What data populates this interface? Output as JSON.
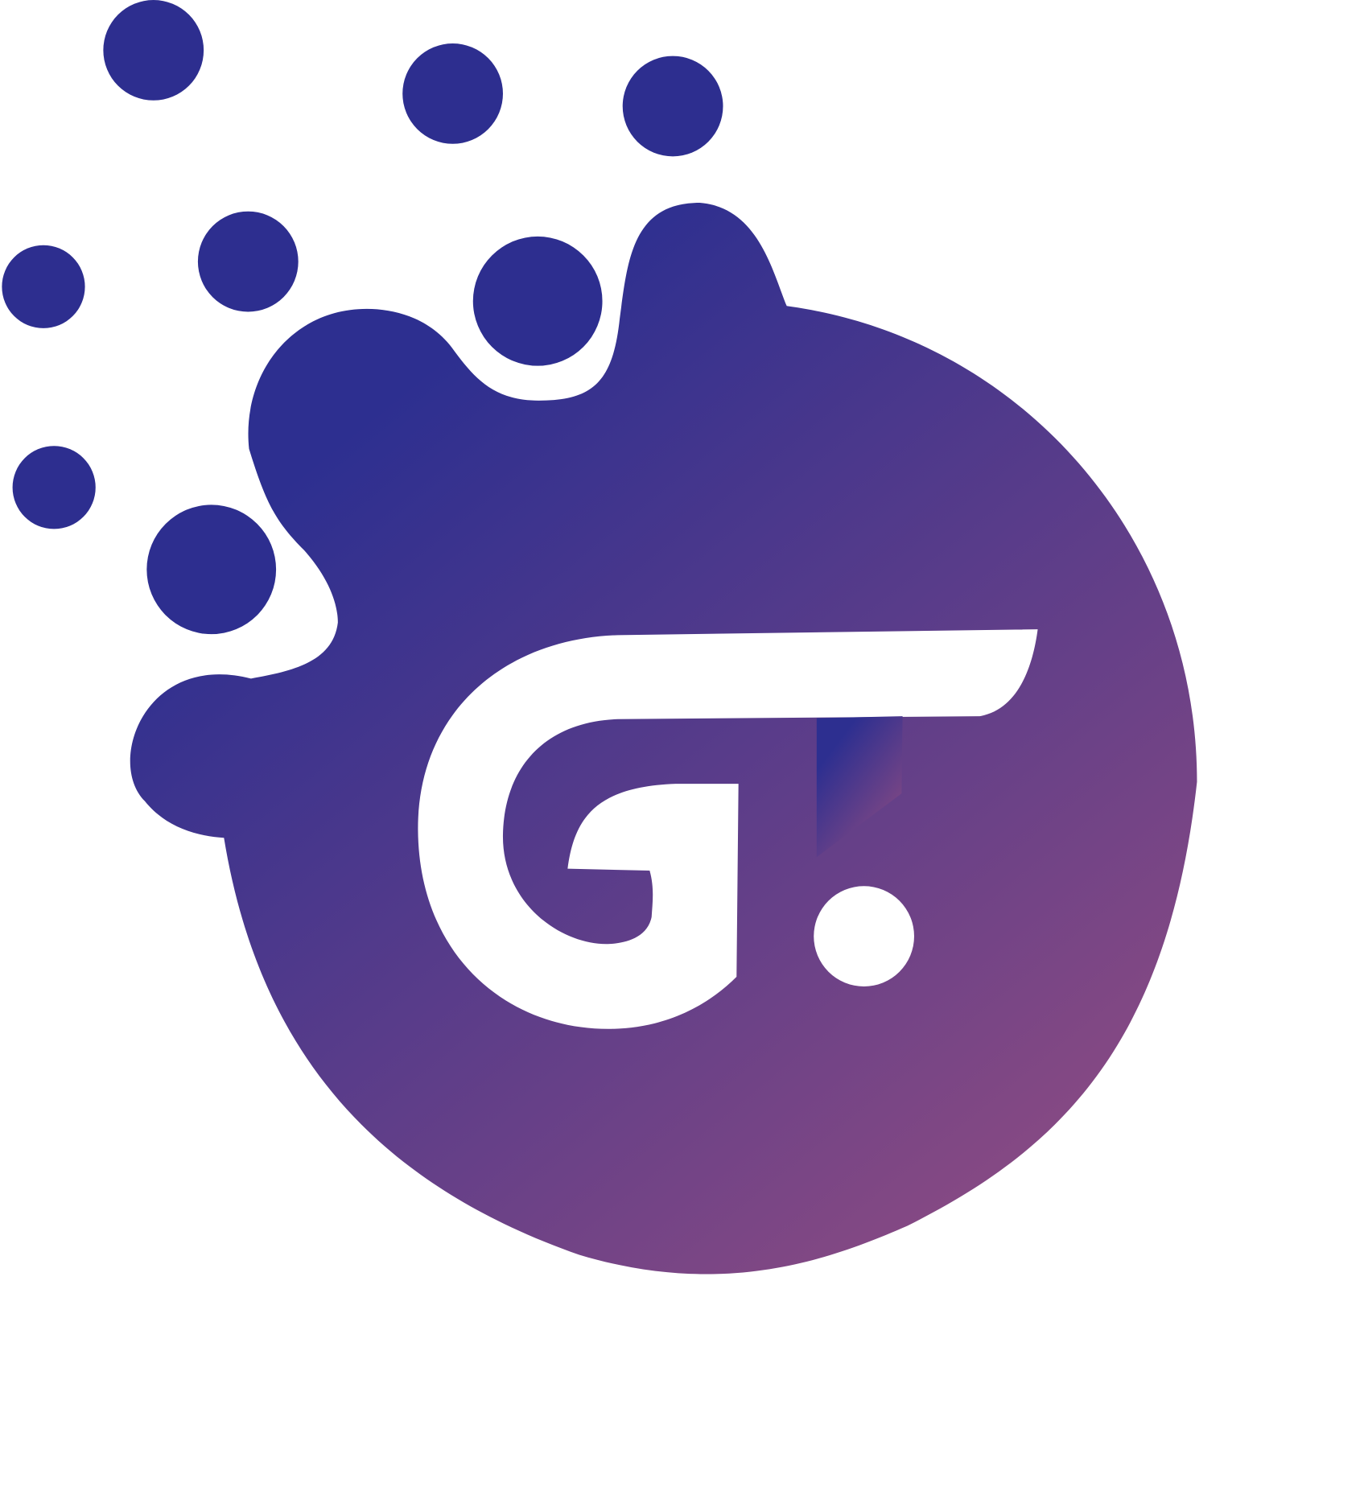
{
  "logo": {
    "monogram": "GT",
    "colors": {
      "dots": "#2d2e8f",
      "gradient_start": "#2d2f90",
      "gradient_end": "#884a83",
      "letters": "#ffffff",
      "background": "#ffffff"
    },
    "icon": "gt-splash-logo-icon"
  }
}
